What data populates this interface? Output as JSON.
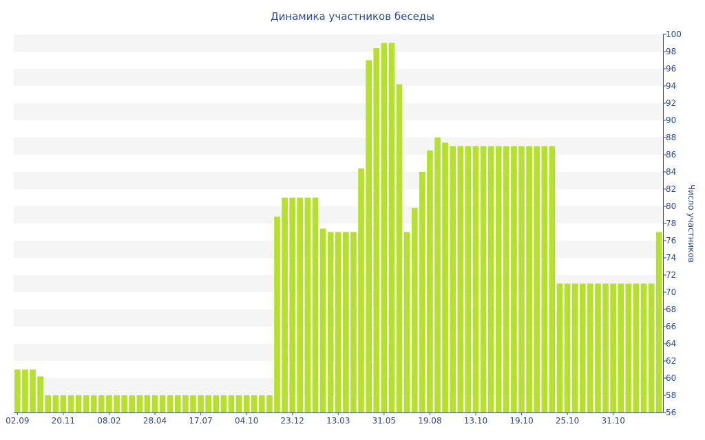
{
  "chart_data": {
    "type": "bar",
    "title": "Динамика участников беседы",
    "xlabel": "",
    "ylabel": "Число участников",
    "ylim": [
      56,
      100
    ],
    "y_ticks": [
      56,
      58,
      60,
      62,
      64,
      66,
      68,
      70,
      72,
      74,
      76,
      78,
      80,
      82,
      84,
      86,
      88,
      90,
      92,
      94,
      96,
      98,
      100
    ],
    "x_tick_labels": [
      {
        "index": 0,
        "label": "02.09"
      },
      {
        "index": 6,
        "label": "20.11"
      },
      {
        "index": 12,
        "label": "08.02"
      },
      {
        "index": 18,
        "label": "28.04"
      },
      {
        "index": 24,
        "label": "17.07"
      },
      {
        "index": 30,
        "label": "04.10"
      },
      {
        "index": 36,
        "label": "23.12"
      },
      {
        "index": 42,
        "label": "13.03"
      },
      {
        "index": 48,
        "label": "31.05"
      },
      {
        "index": 54,
        "label": "19.08"
      },
      {
        "index": 60,
        "label": "13.10"
      },
      {
        "index": 66,
        "label": "19.10"
      },
      {
        "index": 72,
        "label": "25.10"
      },
      {
        "index": 78,
        "label": "31.10"
      }
    ],
    "values": [
      61,
      61,
      61,
      60.2,
      58,
      58,
      58,
      58,
      58,
      58,
      58,
      58,
      58,
      58,
      58,
      58,
      58,
      58,
      58,
      58,
      58,
      58,
      58,
      58,
      58,
      58,
      58,
      58,
      58,
      58,
      58,
      58,
      58,
      58,
      78.8,
      81,
      81,
      81,
      81,
      81,
      77.4,
      77,
      77,
      77,
      77,
      84.4,
      97,
      98.4,
      99,
      99,
      94.2,
      77,
      79.8,
      84,
      86.5,
      88,
      87.4,
      87,
      87,
      87,
      87,
      87,
      87,
      87,
      87,
      87,
      87,
      87,
      87,
      87,
      87,
      71,
      71,
      71,
      71,
      71,
      71,
      71,
      71,
      71,
      71,
      71,
      71,
      71,
      77
    ],
    "grid": true,
    "band_colors": [
      "#f5f5f5",
      "#ffffff"
    ],
    "bar_color": "#b5e02e",
    "text_color": "#2f4a8a",
    "axis_color": "#2f4a8a"
  }
}
